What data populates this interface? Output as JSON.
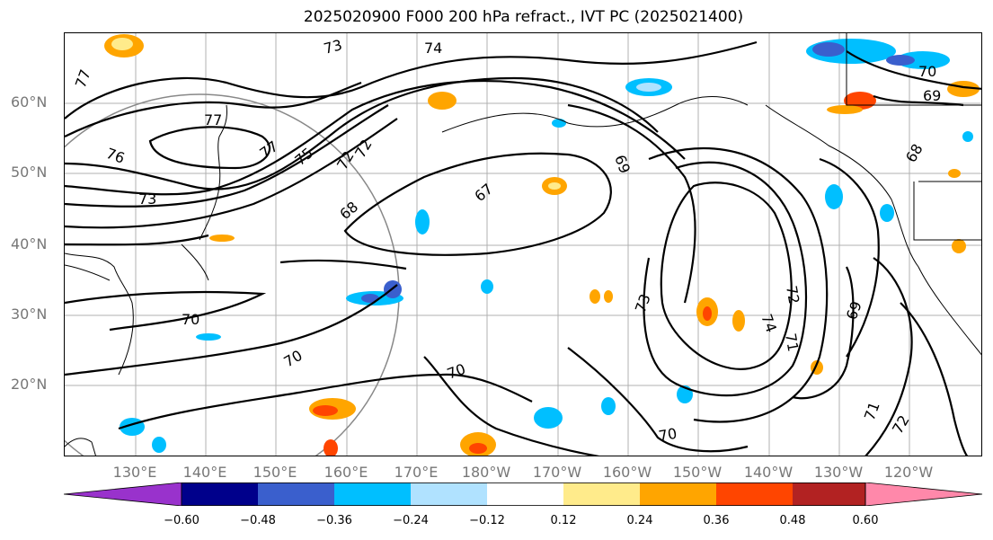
{
  "title": "2025020900 F000 200 hPa refract., IVT PC (2025021400)",
  "lat_labels": [
    "60°N",
    "50°N",
    "40°N",
    "30°N",
    "20°N"
  ],
  "lon_labels": [
    "130°E",
    "140°E",
    "150°E",
    "160°E",
    "170°E",
    "180°W",
    "170°W",
    "160°W",
    "150°W",
    "140°W",
    "130°W",
    "120°W"
  ],
  "colorbar": {
    "ticks": [
      "−0.60",
      "−0.48",
      "−0.36",
      "−0.24",
      "−0.12",
      "0.12",
      "0.24",
      "0.36",
      "0.48",
      "0.60"
    ],
    "colors": [
      "#9932CC",
      "#00008B",
      "#3A5FCD",
      "#00BFFF",
      "#B0E2FF",
      "#FFFFFF",
      "#FFEB8B",
      "#FFA500",
      "#FF4500",
      "#B22222",
      "#FF88AA"
    ]
  },
  "contour_labels": [
    "77",
    "77",
    "77",
    "76",
    "75",
    "73",
    "73",
    "74",
    "72",
    "72",
    "68",
    "67",
    "69",
    "70",
    "70",
    "70",
    "70",
    "70",
    "69",
    "68",
    "73",
    "74",
    "72",
    "71",
    "69",
    "71",
    "72"
  ]
}
